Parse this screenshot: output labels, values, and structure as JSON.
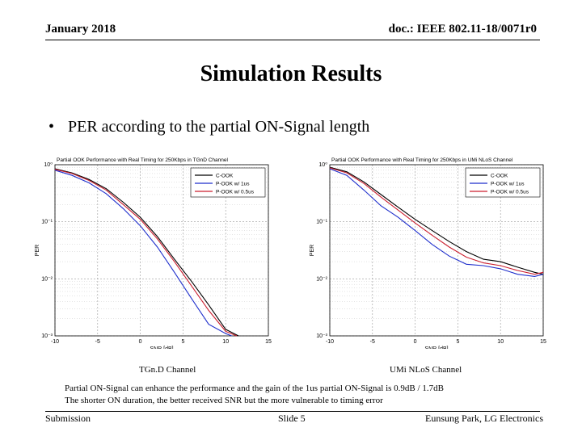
{
  "header": {
    "date": "January 2018",
    "doc_id": "doc.: IEEE 802.11-18/0071r0"
  },
  "slide": {
    "title": "Simulation Results",
    "bullet": "PER according to the partial ON-Signal length",
    "bullet_marker": "•",
    "caption_line1": "Partial ON-Signal can enhance the performance and the gain of the 1us partial ON-Signal is 0.9dB / 1.7dB",
    "caption_line2": "The shorter ON duration, the better received SNR but the more vulnerable to timing error"
  },
  "footer": {
    "left": "Submission",
    "center": "Slide 5",
    "right": "Eunsung Park, LG Electronics"
  },
  "colors": {
    "c_ook": "#000000",
    "p_ook_1us": "#1f2fcc",
    "p_ook_05us": "#cc1f2f"
  },
  "chart_data": [
    {
      "type": "line",
      "title": "Partial OOK Performance with Real Timing for 250Kbps in TGnD Channel",
      "xlabel": "SNR [dB]",
      "ylabel": "PER",
      "caption": "TGn.D Channel",
      "yscale": "log",
      "xlim": [
        -10,
        15
      ],
      "ylim": [
        0.001,
        1
      ],
      "xticks": [
        -10,
        -5,
        0,
        5,
        10,
        15
      ],
      "xtick_labels": [
        "-10",
        "-5",
        "0",
        "5",
        "10",
        "15"
      ],
      "yticks": [
        1,
        0.1,
        0.01,
        0.001
      ],
      "ytick_labels": [
        "10⁰",
        "10⁻¹",
        "10⁻²",
        "10⁻³"
      ],
      "legend_position": "top-right",
      "series": [
        {
          "name": "C-OOK",
          "color": "#000000",
          "x": [
            -10,
            -8,
            -6,
            -4,
            -2,
            0,
            2,
            4,
            6,
            8,
            10,
            11.5
          ],
          "y": [
            0.85,
            0.72,
            0.55,
            0.38,
            0.22,
            0.12,
            0.055,
            0.022,
            0.009,
            0.0035,
            0.0013,
            0.001
          ]
        },
        {
          "name": "P-OOK w/ 1us",
          "color": "#1f2fcc",
          "x": [
            -10,
            -8,
            -6,
            -4,
            -2,
            0,
            2,
            4,
            6,
            8,
            10,
            10.7
          ],
          "y": [
            0.8,
            0.65,
            0.48,
            0.31,
            0.17,
            0.085,
            0.036,
            0.013,
            0.0045,
            0.0016,
            0.0011,
            0.001
          ]
        },
        {
          "name": "P-OOK w/ 0.5us",
          "color": "#cc1f2f",
          "x": [
            -10,
            -8,
            -6,
            -4,
            -2,
            0,
            2,
            4,
            6,
            8,
            10,
            11.3
          ],
          "y": [
            0.83,
            0.7,
            0.53,
            0.36,
            0.2,
            0.11,
            0.05,
            0.02,
            0.0075,
            0.0028,
            0.0012,
            0.001
          ]
        }
      ]
    },
    {
      "type": "line",
      "title": "Partial OOK Performance with Real Timing for 250Kbps in UMi NLoS Channel",
      "xlabel": "SNR [dB]",
      "ylabel": "PER",
      "caption": "UMi NLoS Channel",
      "yscale": "log",
      "xlim": [
        -10,
        15
      ],
      "ylim": [
        0.001,
        1
      ],
      "xticks": [
        -10,
        -5,
        0,
        5,
        10,
        15
      ],
      "xtick_labels": [
        "-10",
        "-5",
        "0",
        "5",
        "10",
        "15"
      ],
      "yticks": [
        1,
        0.1,
        0.01,
        0.001
      ],
      "ytick_labels": [
        "10⁰",
        "10⁻¹",
        "10⁻²",
        "10⁻³"
      ],
      "legend_position": "top-right",
      "series": [
        {
          "name": "C-OOK",
          "color": "#000000",
          "x": [
            -10,
            -8,
            -6,
            -4,
            -2,
            0,
            2,
            4,
            6,
            8,
            10,
            12,
            14,
            15
          ],
          "y": [
            0.9,
            0.75,
            0.5,
            0.3,
            0.18,
            0.11,
            0.07,
            0.045,
            0.03,
            0.022,
            0.02,
            0.016,
            0.013,
            0.012
          ]
        },
        {
          "name": "P-OOK w/ 1us",
          "color": "#1f2fcc",
          "x": [
            -10,
            -8,
            -6,
            -4,
            -2,
            0,
            2,
            4,
            6,
            8,
            10,
            12,
            14,
            15
          ],
          "y": [
            0.85,
            0.65,
            0.36,
            0.19,
            0.12,
            0.07,
            0.04,
            0.025,
            0.018,
            0.017,
            0.015,
            0.012,
            0.011,
            0.012
          ]
        },
        {
          "name": "P-OOK w/ 0.5us",
          "color": "#cc1f2f",
          "x": [
            -10,
            -8,
            -6,
            -4,
            -2,
            0,
            2,
            4,
            6,
            8,
            10,
            12,
            14,
            15
          ],
          "y": [
            0.88,
            0.72,
            0.47,
            0.27,
            0.16,
            0.095,
            0.058,
            0.036,
            0.024,
            0.019,
            0.017,
            0.014,
            0.012,
            0.013
          ]
        }
      ]
    }
  ]
}
